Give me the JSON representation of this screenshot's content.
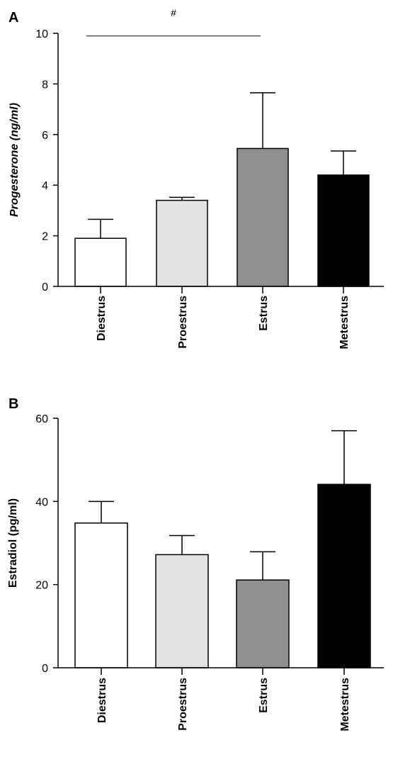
{
  "colors": {
    "axis": "#000000",
    "significance_line": "#555555"
  },
  "chart_data": [
    {
      "type": "bar",
      "panel": "A",
      "categories": [
        "Diestrus",
        "Proestrus",
        "Estrus",
        "Metestrus"
      ],
      "values": [
        1.9,
        3.4,
        5.45,
        4.4
      ],
      "errors": [
        0.75,
        0.12,
        2.2,
        0.95
      ],
      "colors": [
        "#ffffff",
        "#e2e2e2",
        "#8f8f8f",
        "#000000"
      ],
      "ylabel": "Progesterone (ng/ml)",
      "ylabel_italic": true,
      "yticks": [
        0,
        2,
        4,
        6,
        8,
        10
      ],
      "ylim": [
        0,
        10
      ],
      "significance": {
        "symbol": "#",
        "from": "Diestrus",
        "to": "Estrus",
        "y": 9.9
      }
    },
    {
      "type": "bar",
      "panel": "B",
      "categories": [
        "Diestrus",
        "Proestrus",
        "Estrus",
        "Metestrus"
      ],
      "values": [
        34.8,
        27.2,
        21.1,
        44.1
      ],
      "errors": [
        5.2,
        4.6,
        6.8,
        12.9
      ],
      "colors": [
        "#ffffff",
        "#e2e2e2",
        "#8f8f8f",
        "#000000"
      ],
      "ylabel": "Estradiol (pg/ml)",
      "ylabel_italic": false,
      "yticks": [
        0,
        20,
        40,
        60
      ],
      "ylim": [
        0,
        60
      ]
    }
  ]
}
